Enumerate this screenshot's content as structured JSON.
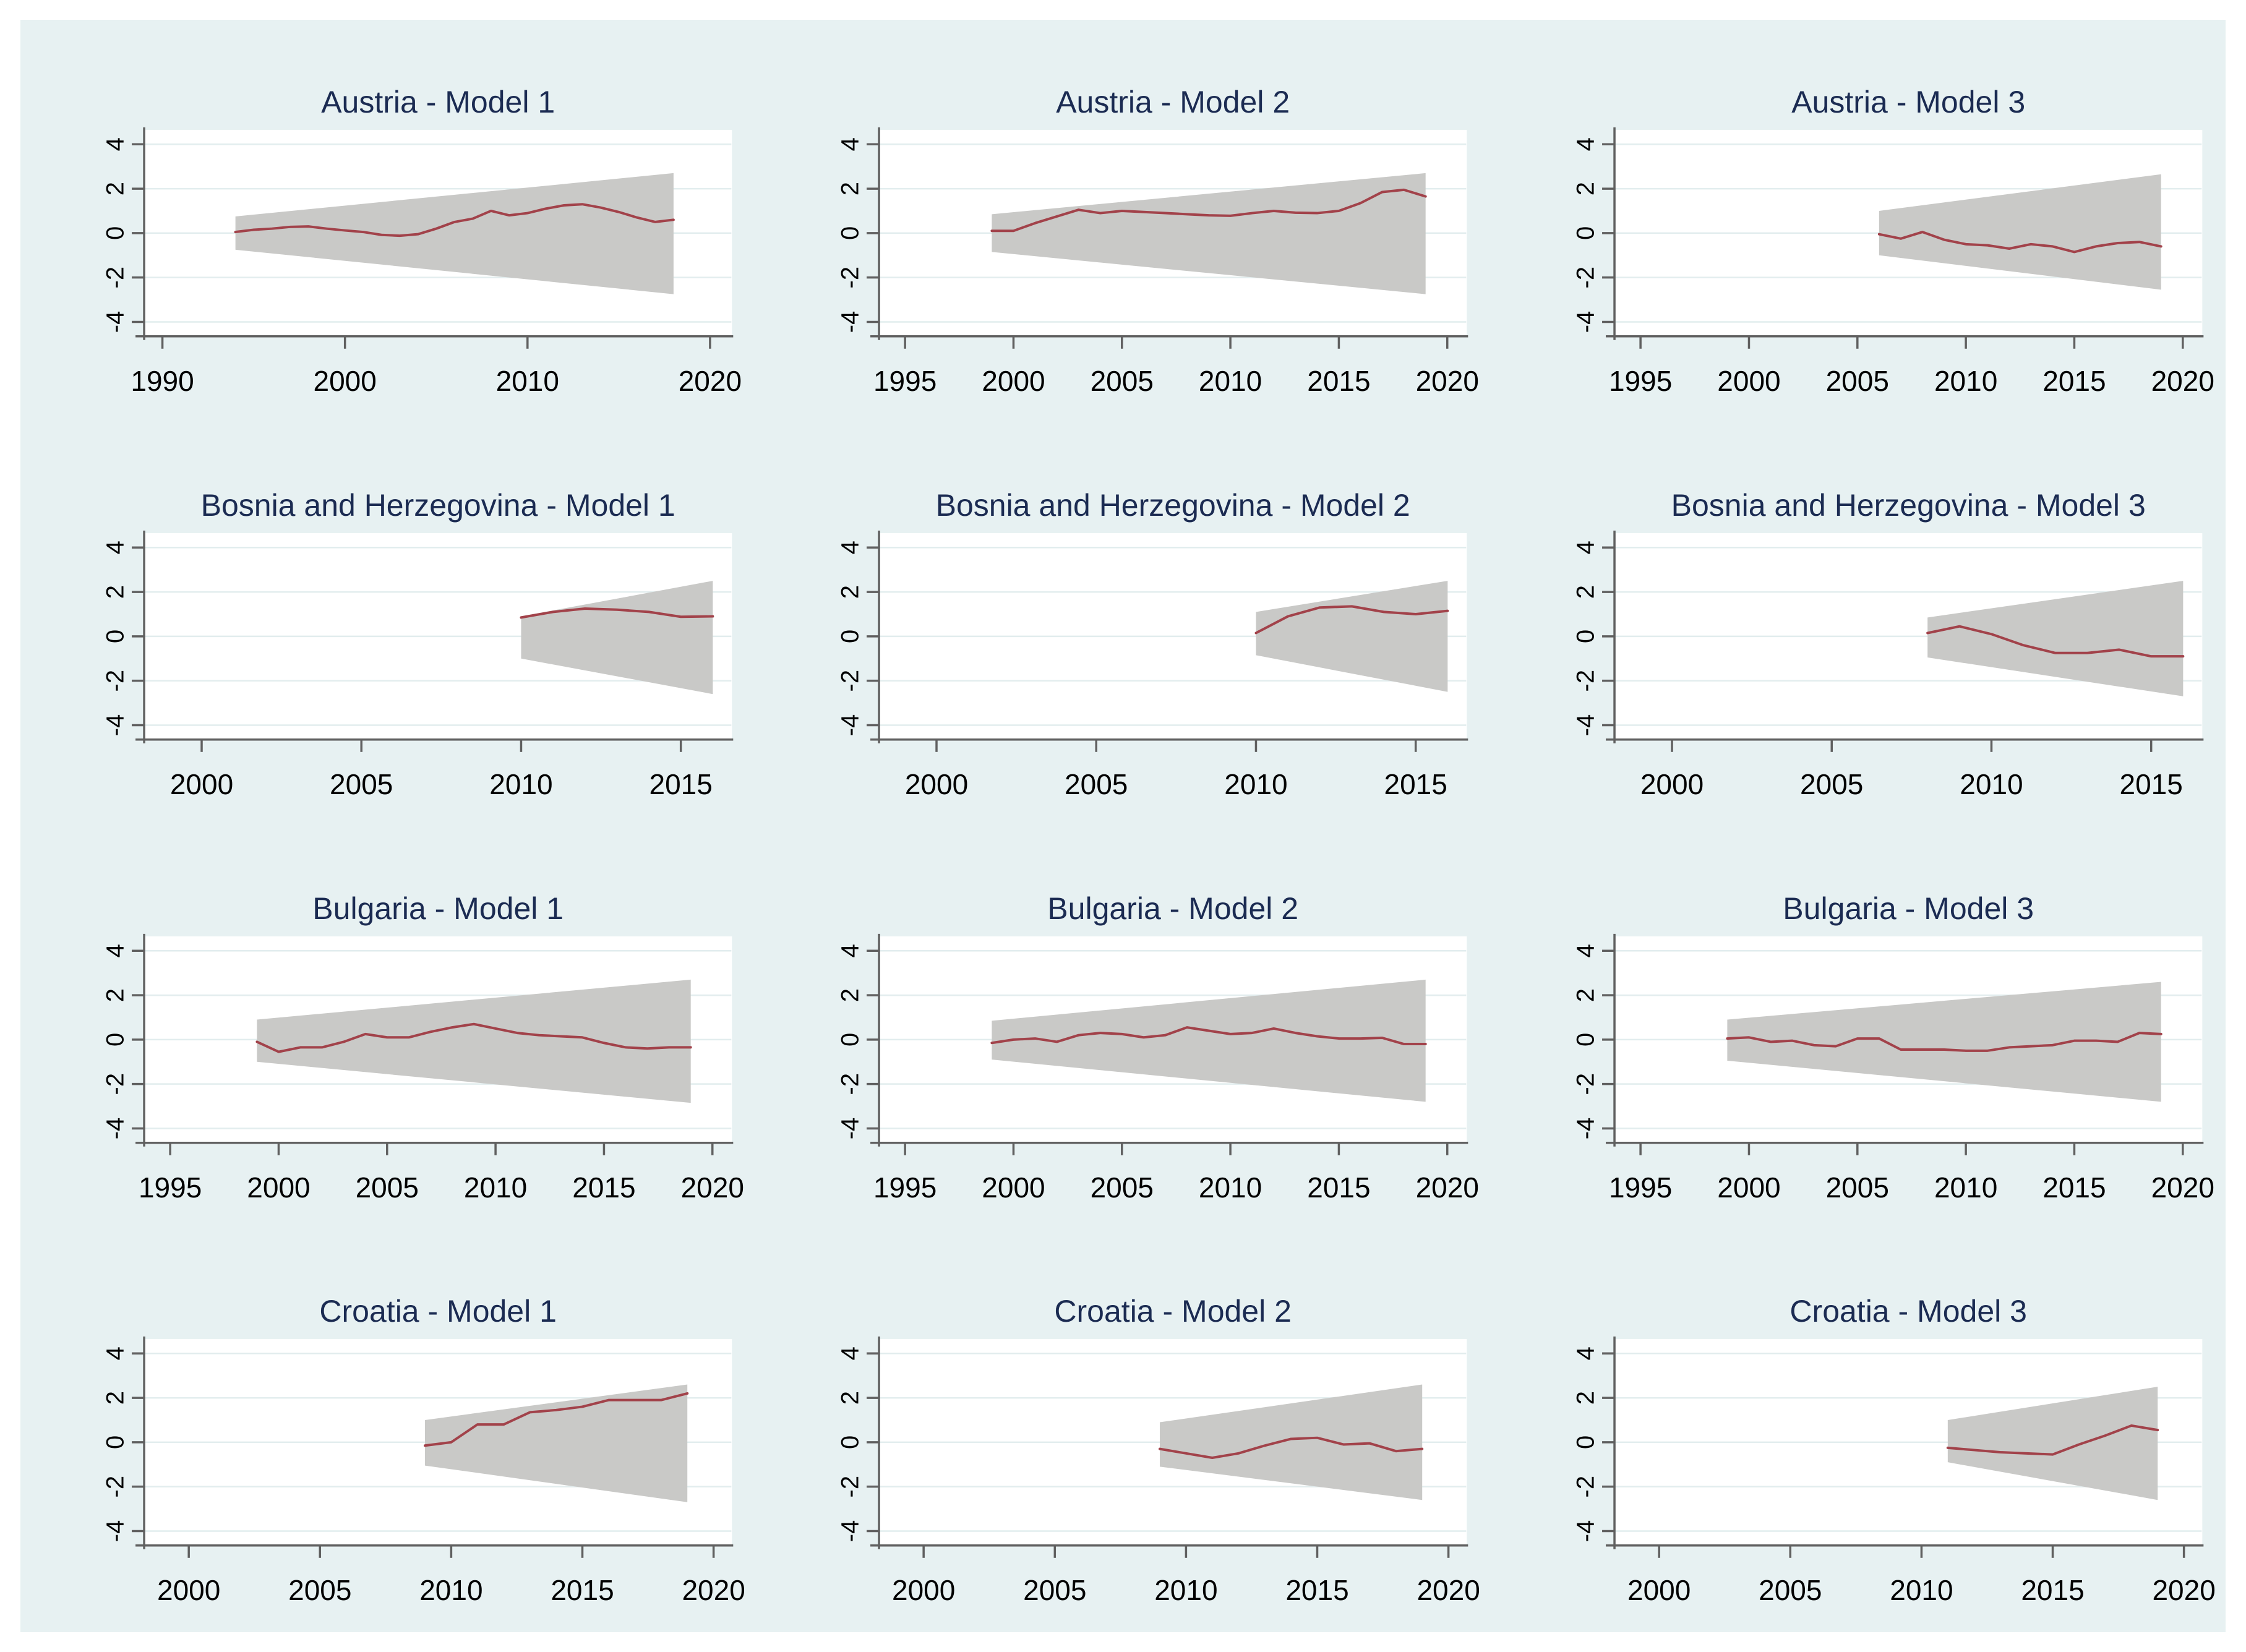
{
  "figure": {
    "background_color": "#e7f1f2",
    "plot_background": "#ffffff",
    "band_color": "#c9c9c7",
    "line_color": "#a2424a",
    "title_color": "#1b2b52",
    "grid_color": "#e2edee",
    "axis_color": "#606060",
    "tick_label_color": "#000000"
  },
  "y_axis": {
    "ticks": [
      -4,
      -2,
      0,
      2,
      4
    ],
    "range": [
      -4.65,
      4.65
    ]
  },
  "chart_data": [
    {
      "type": "line",
      "title": "Austria - Model 1",
      "country": "Austria",
      "model": "Model 1",
      "x_ticks": [
        1990,
        2000,
        2010,
        2020
      ],
      "x_range": [
        1989,
        2021.2
      ],
      "band": {
        "x": [
          1994,
          2018
        ],
        "upper": [
          0.75,
          2.7
        ],
        "lower": [
          -0.75,
          -2.75
        ]
      },
      "series": {
        "x": [
          1994,
          1995,
          1996,
          1997,
          1998,
          1999,
          2000,
          2001,
          2002,
          2003,
          2004,
          2005,
          2006,
          2007,
          2008,
          2009,
          2010,
          2011,
          2012,
          2013,
          2014,
          2015,
          2016,
          2017,
          2018
        ],
        "y": [
          0.05,
          0.15,
          0.2,
          0.28,
          0.3,
          0.2,
          0.12,
          0.05,
          -0.08,
          -0.12,
          -0.05,
          0.2,
          0.5,
          0.65,
          1.0,
          0.8,
          0.9,
          1.1,
          1.25,
          1.3,
          1.15,
          0.95,
          0.7,
          0.5,
          0.6
        ]
      }
    },
    {
      "type": "line",
      "title": "Austria - Model 2",
      "country": "Austria",
      "model": "Model 2",
      "x_ticks": [
        1995,
        2000,
        2005,
        2010,
        2015,
        2020
      ],
      "x_range": [
        1993.8,
        2020.9
      ],
      "band": {
        "x": [
          1999,
          2019
        ],
        "upper": [
          0.85,
          2.7
        ],
        "lower": [
          -0.85,
          -2.75
        ]
      },
      "series": {
        "x": [
          1999,
          2000,
          2001,
          2002,
          2003,
          2004,
          2005,
          2006,
          2007,
          2008,
          2009,
          2010,
          2011,
          2012,
          2013,
          2014,
          2015,
          2016,
          2017,
          2018,
          2019
        ],
        "y": [
          0.1,
          0.1,
          0.45,
          0.75,
          1.05,
          0.9,
          1.0,
          0.95,
          0.9,
          0.85,
          0.8,
          0.78,
          0.9,
          1.0,
          0.92,
          0.9,
          1.0,
          1.35,
          1.85,
          1.95,
          1.65
        ]
      }
    },
    {
      "type": "line",
      "title": "Austria - Model 3",
      "country": "Austria",
      "model": "Model 3",
      "x_ticks": [
        1995,
        2000,
        2005,
        2010,
        2015,
        2020
      ],
      "x_range": [
        1993.8,
        2020.9
      ],
      "band": {
        "x": [
          2006,
          2019
        ],
        "upper": [
          1.0,
          2.65
        ],
        "lower": [
          -1.0,
          -2.55
        ]
      },
      "series": {
        "x": [
          2006,
          2007,
          2008,
          2009,
          2010,
          2011,
          2012,
          2013,
          2014,
          2015,
          2016,
          2017,
          2018,
          2019
        ],
        "y": [
          -0.05,
          -0.25,
          0.05,
          -0.3,
          -0.5,
          -0.55,
          -0.7,
          -0.5,
          -0.6,
          -0.85,
          -0.6,
          -0.45,
          -0.4,
          -0.6
        ]
      }
    },
    {
      "type": "line",
      "title": "Bosnia and Herzegovina - Model 1",
      "country": "Bosnia and Herzegovina",
      "model": "Model 1",
      "x_ticks": [
        2000,
        2005,
        2010,
        2015
      ],
      "x_range": [
        1998.2,
        2016.6
      ],
      "band": {
        "x": [
          2010,
          2016
        ],
        "upper": [
          0.9,
          2.5
        ],
        "lower": [
          -1.0,
          -2.6
        ]
      },
      "series": {
        "x": [
          2010,
          2011,
          2012,
          2013,
          2014,
          2015,
          2016
        ],
        "y": [
          0.85,
          1.1,
          1.25,
          1.2,
          1.1,
          0.88,
          0.9
        ]
      }
    },
    {
      "type": "line",
      "title": "Bosnia and Herzegovina - Model 2",
      "country": "Bosnia and Herzegovina",
      "model": "Model 2",
      "x_ticks": [
        2000,
        2005,
        2010,
        2015
      ],
      "x_range": [
        1998.2,
        2016.6
      ],
      "band": {
        "x": [
          2010,
          2016
        ],
        "upper": [
          1.1,
          2.5
        ],
        "lower": [
          -0.85,
          -2.5
        ]
      },
      "series": {
        "x": [
          2010,
          2011,
          2012,
          2013,
          2014,
          2015,
          2016
        ],
        "y": [
          0.15,
          0.9,
          1.3,
          1.35,
          1.1,
          1.0,
          1.15
        ]
      }
    },
    {
      "type": "line",
      "title": "Bosnia and Herzegovina - Model 3",
      "country": "Bosnia and Herzegovina",
      "model": "Model 3",
      "x_ticks": [
        2000,
        2005,
        2010,
        2015
      ],
      "x_range": [
        1998.2,
        2016.6
      ],
      "band": {
        "x": [
          2008,
          2016
        ],
        "upper": [
          0.85,
          2.5
        ],
        "lower": [
          -0.95,
          -2.7
        ]
      },
      "series": {
        "x": [
          2008,
          2009,
          2010,
          2011,
          2012,
          2013,
          2014,
          2015,
          2016
        ],
        "y": [
          0.15,
          0.45,
          0.1,
          -0.4,
          -0.75,
          -0.75,
          -0.6,
          -0.9,
          -0.9
        ]
      }
    },
    {
      "type": "line",
      "title": "Bulgaria - Model 1",
      "country": "Bulgaria",
      "model": "Model 1",
      "x_ticks": [
        1995,
        2000,
        2005,
        2010,
        2015,
        2020
      ],
      "x_range": [
        1993.8,
        2020.9
      ],
      "band": {
        "x": [
          1999,
          2019
        ],
        "upper": [
          0.9,
          2.7
        ],
        "lower": [
          -1.0,
          -2.85
        ]
      },
      "series": {
        "x": [
          1999,
          2000,
          2001,
          2002,
          2003,
          2004,
          2005,
          2006,
          2007,
          2008,
          2009,
          2010,
          2011,
          2012,
          2013,
          2014,
          2015,
          2016,
          2017,
          2018,
          2019
        ],
        "y": [
          -0.1,
          -0.55,
          -0.35,
          -0.35,
          -0.1,
          0.25,
          0.1,
          0.1,
          0.35,
          0.55,
          0.7,
          0.5,
          0.3,
          0.2,
          0.15,
          0.1,
          -0.15,
          -0.35,
          -0.4,
          -0.35,
          -0.35
        ]
      }
    },
    {
      "type": "line",
      "title": "Bulgaria - Model 2",
      "country": "Bulgaria",
      "model": "Model 2",
      "x_ticks": [
        1995,
        2000,
        2005,
        2010,
        2015,
        2020
      ],
      "x_range": [
        1993.8,
        2020.9
      ],
      "band": {
        "x": [
          1999,
          2019
        ],
        "upper": [
          0.85,
          2.7
        ],
        "lower": [
          -0.9,
          -2.8
        ]
      },
      "series": {
        "x": [
          1999,
          2000,
          2001,
          2002,
          2003,
          2004,
          2005,
          2006,
          2007,
          2008,
          2009,
          2010,
          2011,
          2012,
          2013,
          2014,
          2015,
          2016,
          2017,
          2018,
          2019
        ],
        "y": [
          -0.15,
          0.0,
          0.05,
          -0.1,
          0.2,
          0.3,
          0.25,
          0.1,
          0.2,
          0.55,
          0.4,
          0.25,
          0.3,
          0.5,
          0.3,
          0.15,
          0.05,
          0.05,
          0.08,
          -0.2,
          -0.2
        ]
      }
    },
    {
      "type": "line",
      "title": "Bulgaria - Model 3",
      "country": "Bulgaria",
      "model": "Model 3",
      "x_ticks": [
        1995,
        2000,
        2005,
        2010,
        2015,
        2020
      ],
      "x_range": [
        1993.8,
        2020.9
      ],
      "band": {
        "x": [
          1999,
          2019
        ],
        "upper": [
          0.9,
          2.6
        ],
        "lower": [
          -0.95,
          -2.8
        ]
      },
      "series": {
        "x": [
          1999,
          2000,
          2001,
          2002,
          2003,
          2004,
          2005,
          2006,
          2007,
          2008,
          2009,
          2010,
          2011,
          2012,
          2013,
          2014,
          2015,
          2016,
          2017,
          2018,
          2019
        ],
        "y": [
          0.05,
          0.1,
          -0.1,
          -0.05,
          -0.25,
          -0.3,
          0.05,
          0.05,
          -0.45,
          -0.45,
          -0.45,
          -0.5,
          -0.5,
          -0.35,
          -0.3,
          -0.25,
          -0.05,
          -0.05,
          -0.1,
          0.3,
          0.25
        ]
      }
    },
    {
      "type": "line",
      "title": "Croatia - Model 1",
      "country": "Croatia",
      "model": "Model 1",
      "x_ticks": [
        2000,
        2005,
        2010,
        2015,
        2020
      ],
      "x_range": [
        1998.3,
        2020.7
      ],
      "band": {
        "x": [
          2009,
          2019
        ],
        "upper": [
          1.0,
          2.6
        ],
        "lower": [
          -1.05,
          -2.7
        ]
      },
      "series": {
        "x": [
          2009,
          2010,
          2011,
          2012,
          2013,
          2014,
          2015,
          2016,
          2017,
          2018,
          2019
        ],
        "y": [
          -0.15,
          0.0,
          0.8,
          0.8,
          1.35,
          1.45,
          1.6,
          1.9,
          1.9,
          1.9,
          2.2
        ]
      }
    },
    {
      "type": "line",
      "title": "Croatia - Model 2",
      "country": "Croatia",
      "model": "Model 2",
      "x_ticks": [
        2000,
        2005,
        2010,
        2015,
        2020
      ],
      "x_range": [
        1998.3,
        2020.7
      ],
      "band": {
        "x": [
          2009,
          2019
        ],
        "upper": [
          0.9,
          2.6
        ],
        "lower": [
          -1.1,
          -2.6
        ]
      },
      "series": {
        "x": [
          2009,
          2010,
          2011,
          2012,
          2013,
          2014,
          2015,
          2016,
          2017,
          2018,
          2019
        ],
        "y": [
          -0.3,
          -0.5,
          -0.7,
          -0.5,
          -0.15,
          0.15,
          0.2,
          -0.1,
          -0.05,
          -0.4,
          -0.3
        ]
      }
    },
    {
      "type": "line",
      "title": "Croatia - Model 3",
      "country": "Croatia",
      "model": "Model 3",
      "x_ticks": [
        2000,
        2005,
        2010,
        2015,
        2020
      ],
      "x_range": [
        1998.3,
        2020.7
      ],
      "band": {
        "x": [
          2011,
          2019
        ],
        "upper": [
          1.0,
          2.5
        ],
        "lower": [
          -0.9,
          -2.6
        ]
      },
      "series": {
        "x": [
          2011,
          2012,
          2013,
          2014,
          2015,
          2016,
          2017,
          2018,
          2019
        ],
        "y": [
          -0.25,
          -0.35,
          -0.45,
          -0.5,
          -0.55,
          -0.1,
          0.3,
          0.75,
          0.55
        ]
      }
    }
  ]
}
